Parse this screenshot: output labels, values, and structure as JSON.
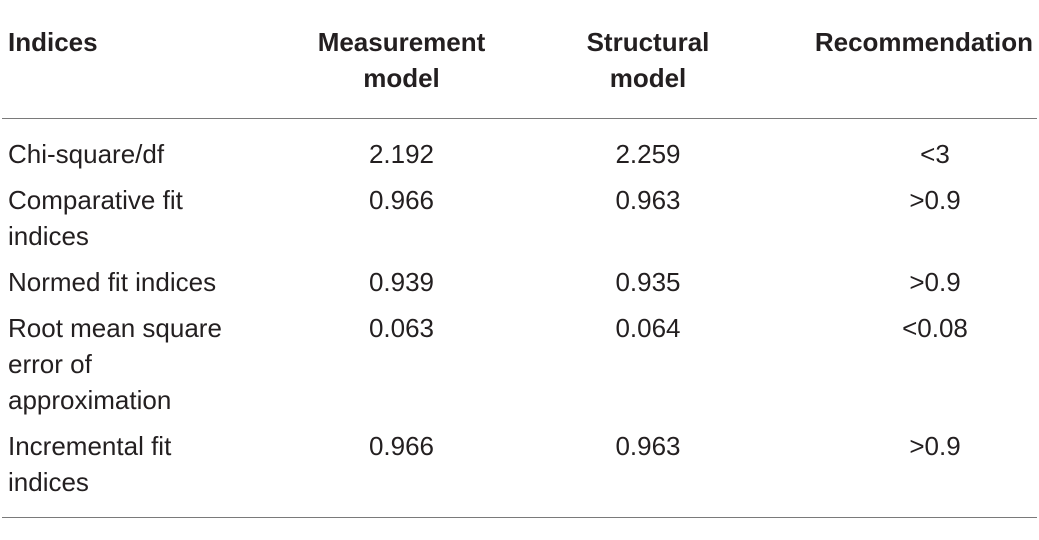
{
  "table": {
    "headers": {
      "indices": "Indices",
      "measurement": "Measurement model",
      "structural": "Structural model",
      "recommendation": "Recommendation"
    },
    "rows": [
      {
        "index": "Chi-square/df",
        "measurement": "2.192",
        "structural": "2.259",
        "recommendation": "<3"
      },
      {
        "index": "Comparative fit indices",
        "measurement": "0.966",
        "structural": "0.963",
        "recommendation": ">0.9"
      },
      {
        "index": "Normed fit indices",
        "measurement": "0.939",
        "structural": "0.935",
        "recommendation": ">0.9"
      },
      {
        "index": "Root mean square error of approximation",
        "measurement": "0.063",
        "structural": "0.064",
        "recommendation": "<0.08"
      },
      {
        "index": "Incremental fit indices",
        "measurement": "0.966",
        "structural": "0.963",
        "recommendation": ">0.9"
      }
    ]
  }
}
